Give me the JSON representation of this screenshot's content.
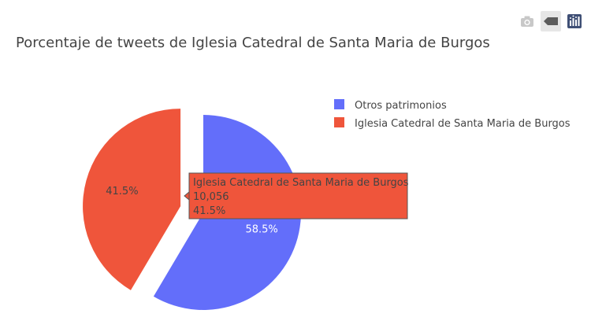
{
  "modebar": {
    "icons": [
      "camera-icon",
      "pan-icon",
      "plotly-logo-icon"
    ]
  },
  "chart_data": {
    "type": "pie",
    "title": "Porcentaje de tweets de Iglesia Catedral de Santa Maria de Burgos",
    "slices": [
      {
        "label": "Otros patrimonios",
        "percent": 58.5,
        "percent_label": "58.5%",
        "color": "#636efa",
        "pulled": false
      },
      {
        "label": "Iglesia Catedral de Santa Maria de Burgos",
        "percent": 41.5,
        "percent_label": "41.5%",
        "color": "#ef553b",
        "pulled": true
      }
    ],
    "legend": {
      "position": "top-right"
    },
    "tooltip": {
      "slice": 1,
      "label": "Iglesia Catedral de Santa Maria de Burgos",
      "value": "10,056",
      "percent": "41.5%"
    }
  }
}
